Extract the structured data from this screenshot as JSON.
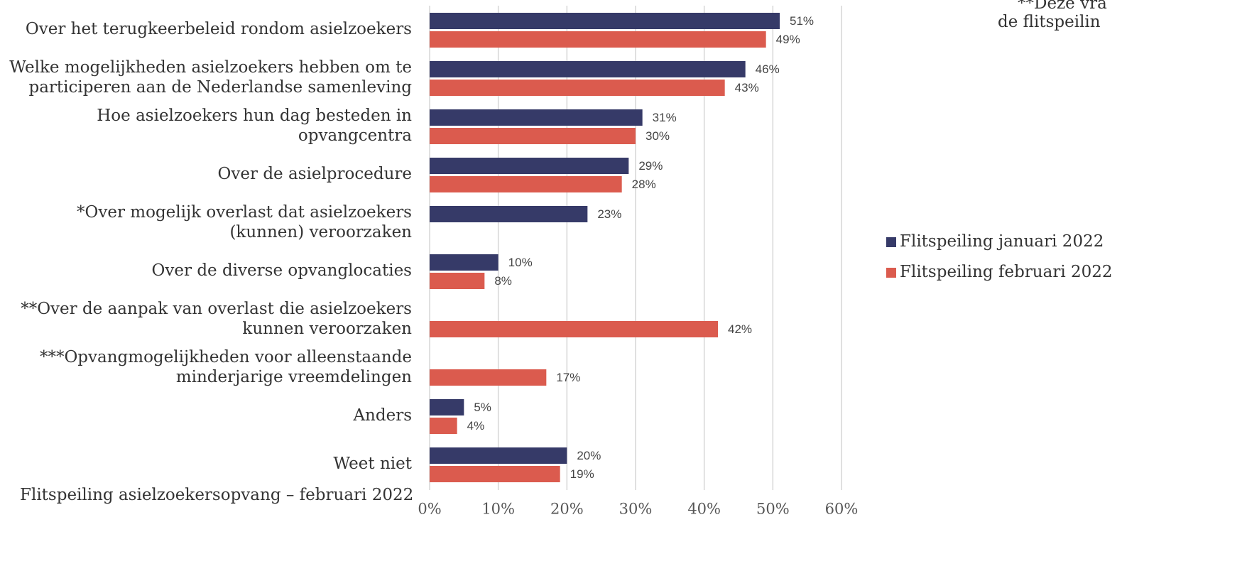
{
  "chart_data": {
    "type": "bar",
    "orientation": "horizontal",
    "categories": [
      [
        "Over het terugkeerbeleid rondom asielzoekers"
      ],
      [
        "Welke mogelijkheden asielzoekers hebben om te",
        "participeren aan de Nederlandse samenleving"
      ],
      [
        "Hoe asielzoekers hun dag besteden in",
        "opvangcentra"
      ],
      [
        "Over de asielprocedure"
      ],
      [
        "*Over mogelijk overlast dat asielzoekers",
        "(kunnen) veroorzaken"
      ],
      [
        "Over de diverse opvanglocaties"
      ],
      [
        "**Over de aanpak van overlast die asielzoekers",
        "kunnen veroorzaken"
      ],
      [
        "***Opvangmogelijkheden voor alleenstaande",
        "minderjarige vreemdelingen"
      ],
      [
        "Anders"
      ],
      [
        "Weet niet"
      ]
    ],
    "series": [
      {
        "name": "Flitspeiling januari 2022",
        "color": "#363a68",
        "values": [
          51,
          46,
          31,
          29,
          23,
          10,
          null,
          null,
          5,
          20
        ],
        "value_labels": [
          "51%",
          "46%",
          "31%",
          "29%",
          "23%",
          "10%",
          null,
          null,
          "5%",
          "20%"
        ]
      },
      {
        "name": "Flitspeiling februari 2022",
        "color": "#db5b4e",
        "values": [
          49,
          43,
          30,
          28,
          null,
          8,
          42,
          17,
          4,
          19
        ],
        "value_labels": [
          "49%",
          "43%",
          "30%",
          "28%",
          null,
          "8%",
          "42%",
          "17%",
          "4%",
          "19%"
        ]
      }
    ],
    "xlim": [
      0,
      60
    ],
    "xticks": [
      {
        "value": 0,
        "label": "0%"
      },
      {
        "value": 10,
        "label": "10%"
      },
      {
        "value": 20,
        "label": "20%"
      },
      {
        "value": 30,
        "label": "30%"
      },
      {
        "value": 40,
        "label": "40%"
      },
      {
        "value": 50,
        "label": "50%"
      },
      {
        "value": 60,
        "label": "60%"
      }
    ],
    "grid": true,
    "legend": "right",
    "annotations": [
      "**Deze vra",
      "de flitspeilin"
    ],
    "footer": "Flitspeiling asielzoekersopvang – februari 2022"
  }
}
